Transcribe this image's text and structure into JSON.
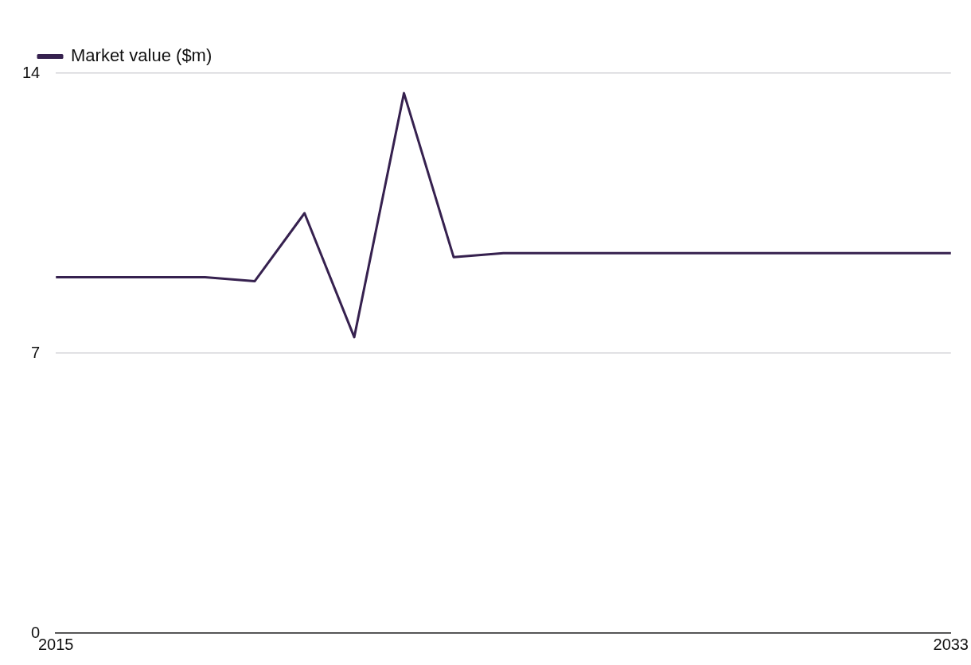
{
  "chart_data": {
    "type": "line",
    "x": [
      2015,
      2016,
      2017,
      2018,
      2019,
      2020,
      2021,
      2022,
      2023,
      2024,
      2025,
      2026,
      2027,
      2028,
      2029,
      2030,
      2031,
      2032,
      2033
    ],
    "series": [
      {
        "name": "Market value ($m)",
        "color": "#36214f",
        "values": [
          8.9,
          8.9,
          8.9,
          8.9,
          8.8,
          10.5,
          7.4,
          13.5,
          9.4,
          9.5,
          9.5,
          9.5,
          9.5,
          9.5,
          9.5,
          9.5,
          9.5,
          9.5,
          9.5
        ]
      }
    ],
    "xlim": [
      2015,
      2033
    ],
    "xticks": [
      2015,
      2033
    ],
    "ylim": [
      0,
      14
    ],
    "yticks": [
      0,
      7,
      14
    ],
    "grid": "y",
    "legend": "top left",
    "marker": "none",
    "line_style": "solid"
  }
}
